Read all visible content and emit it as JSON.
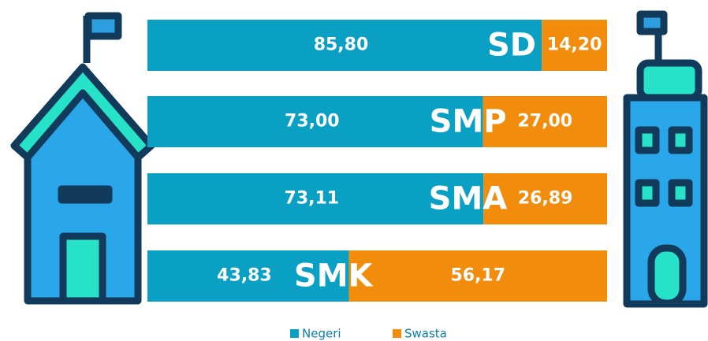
{
  "chart_data": {
    "type": "stacked-bar-horizontal",
    "categories": [
      "SD",
      "SMP",
      "SMA",
      "SMK"
    ],
    "xlim": [
      0,
      100
    ],
    "series": [
      {
        "name": "Negeri",
        "color": "#0aa0c4",
        "values": [
          85.8,
          73.0,
          73.11,
          43.83
        ],
        "value_labels": [
          "85,80",
          "73,00",
          "73,11",
          "43,83"
        ]
      },
      {
        "name": "Swasta",
        "color": "#f28c0c",
        "values": [
          14.2,
          27.0,
          26.89,
          56.17
        ],
        "value_labels": [
          "14,20",
          "27,00",
          "26,89",
          "56,17"
        ]
      }
    ],
    "legend": "bottom"
  }
}
